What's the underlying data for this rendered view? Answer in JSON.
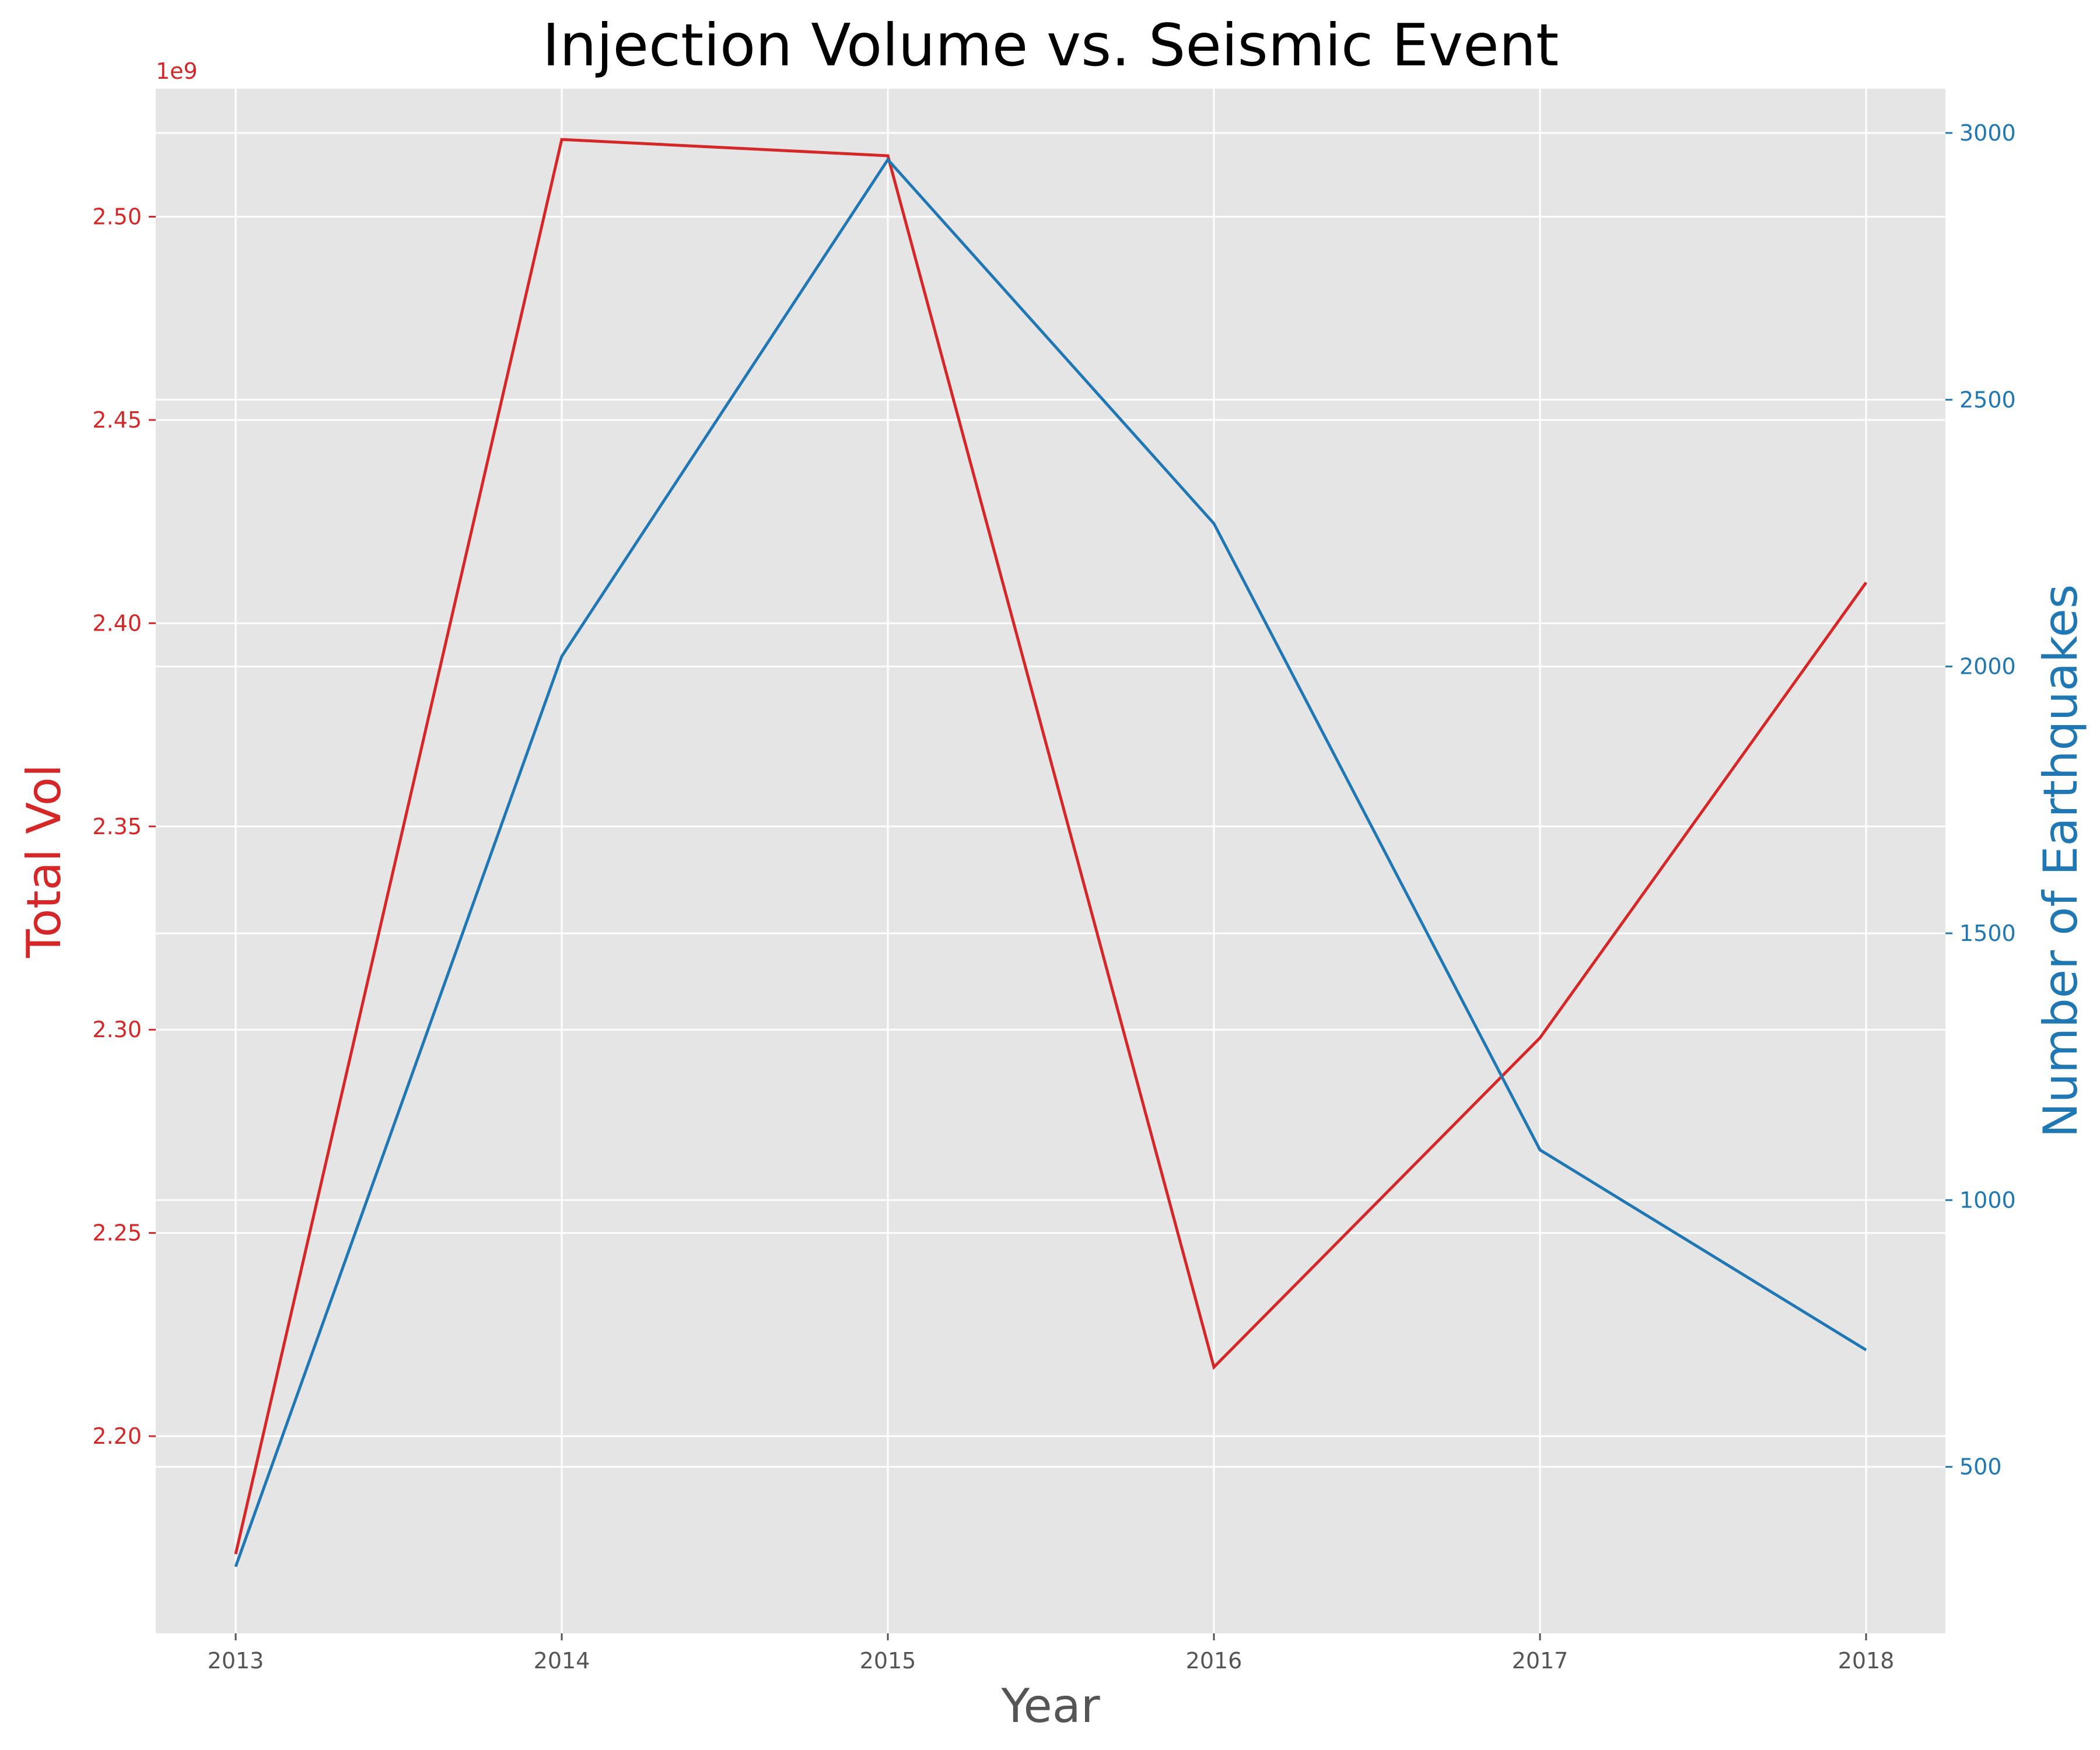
{
  "chart_data": {
    "type": "line",
    "title": "Injection Volume vs. Seismic Event",
    "xlabel": "Year",
    "x": [
      "2013",
      "2014",
      "2015",
      "2016",
      "2017",
      "2018"
    ],
    "left_axis": {
      "label": "Total Vol",
      "color": "#d62728",
      "offset_text": "1e9",
      "ticks": [
        "2.20",
        "2.25",
        "2.30",
        "2.35",
        "2.40",
        "2.45",
        "2.50"
      ],
      "ylim": [
        2.1515,
        2.5315
      ]
    },
    "right_axis": {
      "label": "Number of Earthquakes",
      "color": "#1f77b4",
      "ticks": [
        "500",
        "1000",
        "1500",
        "2000",
        "2500",
        "3000"
      ],
      "ylim": [
        188,
        3083
      ]
    },
    "series": [
      {
        "axis": "left",
        "color": "#d62728",
        "values": [
          2.171,
          2.519,
          2.515,
          2.217,
          2.298,
          2.41
        ]
      },
      {
        "axis": "right",
        "color": "#1f77b4",
        "values": [
          313,
          2019,
          2950,
          2268,
          1094,
          719
        ]
      }
    ],
    "grid": true,
    "background": "#e5e5e5"
  }
}
